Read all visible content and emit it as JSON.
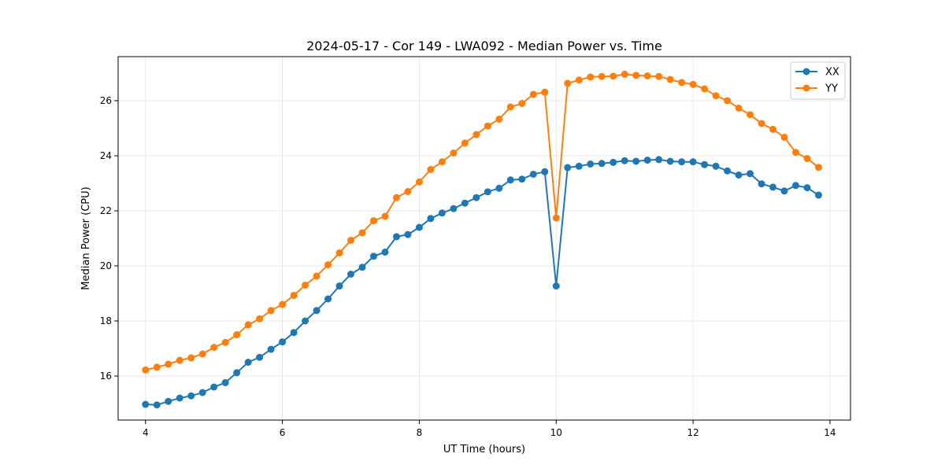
{
  "chart_data": {
    "type": "line",
    "title": "2024-05-17 - Cor 149 - LWA092 - Median Power vs. Time",
    "xlabel": "UT Time (hours)",
    "ylabel": "Median Power (CPU)",
    "xlim": [
      3.6,
      14.3
    ],
    "ylim": [
      14.4,
      27.6
    ],
    "xticks": [
      4,
      6,
      8,
      10,
      12,
      14
    ],
    "yticks": [
      16,
      18,
      20,
      22,
      24,
      26
    ],
    "xtick_labels": [
      "4",
      "6",
      "8",
      "10",
      "12",
      "14"
    ],
    "ytick_labels": [
      "16",
      "18",
      "20",
      "22",
      "24",
      "26"
    ],
    "grid": true,
    "legend_position": "top-right",
    "x": [
      4.0,
      4.1667,
      4.3333,
      4.5,
      4.6667,
      4.8333,
      5.0,
      5.1667,
      5.3333,
      5.5,
      5.6667,
      5.8333,
      6.0,
      6.1667,
      6.3333,
      6.5,
      6.6667,
      6.8333,
      7.0,
      7.1667,
      7.3333,
      7.5,
      7.6667,
      7.8333,
      8.0,
      8.1667,
      8.3333,
      8.5,
      8.6667,
      8.8333,
      9.0,
      9.1667,
      9.3333,
      9.5,
      9.6667,
      9.8333,
      10.0,
      10.1667,
      10.3333,
      10.5,
      10.6667,
      10.8333,
      11.0,
      11.1667,
      11.3333,
      11.5,
      11.6667,
      11.8333,
      12.0,
      12.1667,
      12.3333,
      12.5,
      12.6667,
      12.8333,
      13.0,
      13.1667,
      13.3333,
      13.5,
      13.6667,
      13.8333
    ],
    "series": [
      {
        "name": "XX",
        "color": "#1f77b4",
        "values": [
          14.97,
          14.95,
          15.08,
          15.2,
          15.28,
          15.4,
          15.6,
          15.76,
          16.12,
          16.5,
          16.68,
          16.97,
          17.24,
          17.58,
          18.0,
          18.38,
          18.8,
          19.27,
          19.7,
          19.95,
          20.35,
          20.5,
          21.06,
          21.14,
          21.4,
          21.72,
          21.92,
          22.08,
          22.28,
          22.48,
          22.69,
          22.82,
          23.12,
          23.15,
          23.33,
          23.42,
          19.27,
          23.57,
          23.62,
          23.7,
          23.72,
          23.76,
          23.82,
          23.8,
          23.84,
          23.86,
          23.8,
          23.78,
          23.78,
          23.68,
          23.62,
          23.45,
          23.3,
          23.35,
          22.98,
          22.86,
          22.72,
          22.92,
          22.84,
          22.57
        ]
      },
      {
        "name": "YY",
        "color": "#ff7f0e",
        "values": [
          16.22,
          16.32,
          16.43,
          16.57,
          16.66,
          16.8,
          17.04,
          17.22,
          17.5,
          17.86,
          18.08,
          18.38,
          18.6,
          18.93,
          19.3,
          19.63,
          20.04,
          20.47,
          20.93,
          21.2,
          21.64,
          21.8,
          22.48,
          22.7,
          23.05,
          23.5,
          23.78,
          24.1,
          24.46,
          24.77,
          25.08,
          25.33,
          25.77,
          25.9,
          26.23,
          26.31,
          21.74,
          26.63,
          26.75,
          26.86,
          26.88,
          26.89,
          26.96,
          26.92,
          26.9,
          26.88,
          26.77,
          26.66,
          26.59,
          26.43,
          26.18,
          26.0,
          25.73,
          25.49,
          25.17,
          24.96,
          24.67,
          24.12,
          23.9,
          23.58
        ]
      }
    ]
  }
}
